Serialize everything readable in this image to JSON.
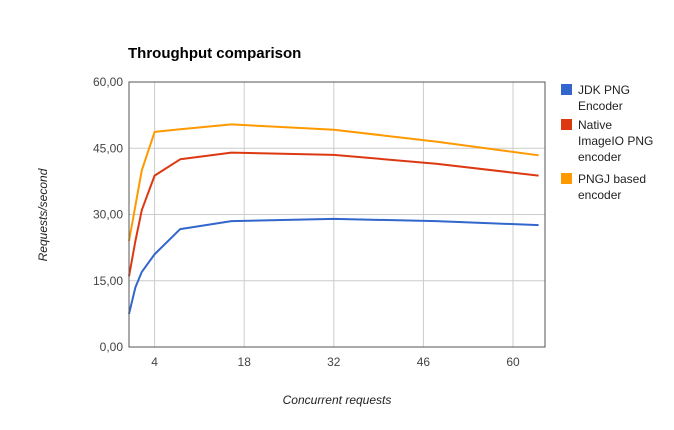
{
  "chart_data": {
    "type": "line",
    "title": "Throughput comparison",
    "xlabel": "Concurrent requests",
    "ylabel": "Requests/second",
    "xlim": [
      0,
      65
    ],
    "ylim": [
      0,
      60
    ],
    "x_ticks": [
      4,
      18,
      32,
      46,
      60
    ],
    "y_ticks": [
      0,
      15,
      30,
      45,
      60
    ],
    "y_tick_labels": [
      "0,00",
      "15,00",
      "30,00",
      "45,00",
      "60,00"
    ],
    "grid": true,
    "legend_position": "right",
    "series": [
      {
        "name": "JDK PNG Encoder",
        "color": "#3366cc",
        "x": [
          0,
          1,
          2,
          4,
          8,
          16,
          32,
          48,
          64
        ],
        "y": [
          7.5,
          13.5,
          17.0,
          21.0,
          26.7,
          28.5,
          29.0,
          28.5,
          27.6
        ]
      },
      {
        "name": "Native ImageIO PNG encoder",
        "color": "#dc3912",
        "x": [
          0,
          1,
          2,
          4,
          8,
          16,
          32,
          48,
          64
        ],
        "y": [
          16.0,
          24.0,
          31.0,
          38.8,
          42.5,
          44.0,
          43.5,
          41.5,
          38.8
        ]
      },
      {
        "name": "PNGJ based encoder",
        "color": "#ff9900",
        "x": [
          0,
          1,
          2,
          4,
          8,
          16,
          32,
          48,
          64
        ],
        "y": [
          24.0,
          32.0,
          40.0,
          48.7,
          49.3,
          50.4,
          49.2,
          46.5,
          43.4
        ]
      }
    ],
    "legend_lines": [
      [
        "JDK PNG",
        "Encoder"
      ],
      [
        "Native",
        "ImageIO PNG",
        "encoder"
      ],
      [
        "PNGJ based",
        "encoder"
      ]
    ]
  }
}
